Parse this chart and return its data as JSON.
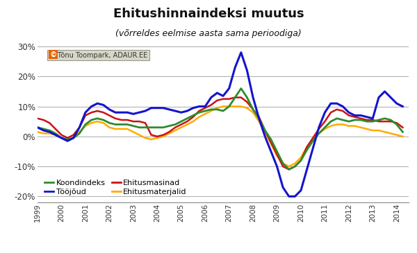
{
  "title": "Ehitushinnaindeksi muutus",
  "subtitle": "(võrreldes eelmise aasta sama perioodiga)",
  "watermark": "© Tõnu Toompark, ADAUR.EE",
  "ylim": [
    -22,
    32
  ],
  "colors": {
    "Koondindeks": "#2e8b2e",
    "Tooojoud": "#1414cc",
    "Ehitusmasinad": "#cc1111",
    "Ehitusmaterjalid": "#ffaa00"
  },
  "background": "#ffffff",
  "grid_color": "#aaaaaa",
  "quarters": [
    1999.0,
    1999.25,
    1999.5,
    1999.75,
    2000.0,
    2000.25,
    2000.5,
    2000.75,
    2001.0,
    2001.25,
    2001.5,
    2001.75,
    2002.0,
    2002.25,
    2002.5,
    2002.75,
    2003.0,
    2003.25,
    2003.5,
    2003.75,
    2004.0,
    2004.25,
    2004.5,
    2004.75,
    2005.0,
    2005.25,
    2005.5,
    2005.75,
    2006.0,
    2006.25,
    2006.5,
    2006.75,
    2007.0,
    2007.25,
    2007.5,
    2007.75,
    2008.0,
    2008.25,
    2008.5,
    2008.75,
    2009.0,
    2009.25,
    2009.5,
    2009.75,
    2010.0,
    2010.25,
    2010.5,
    2010.75,
    2011.0,
    2011.25,
    2011.5,
    2011.75,
    2012.0,
    2012.25,
    2012.5,
    2012.75,
    2013.0,
    2013.25,
    2013.5,
    2013.75,
    2014.0,
    2014.25
  ],
  "koondindeks": [
    3,
    2.5,
    2,
    1,
    -0.5,
    -1,
    -0.5,
    1,
    4,
    5.5,
    6,
    5.5,
    4.5,
    4,
    4,
    4,
    3.5,
    3,
    3,
    3,
    3,
    3,
    3.5,
    4,
    5,
    6,
    7,
    8,
    8.5,
    9,
    9,
    8.5,
    10,
    13,
    16,
    13,
    9,
    6,
    2,
    -1,
    -5,
    -9,
    -11,
    -10,
    -8,
    -4.5,
    -1.5,
    1,
    3,
    5,
    6,
    5.5,
    5,
    5.5,
    5.5,
    5,
    5,
    5.5,
    6,
    5.5,
    4,
    1.5
  ],
  "tooojoud": [
    3,
    2,
    1.5,
    0.5,
    -0.5,
    -1.5,
    -0.5,
    3,
    8,
    10,
    11,
    10.5,
    9,
    8,
    8,
    8,
    7.5,
    8,
    8.5,
    9.5,
    9.5,
    9.5,
    9,
    8.5,
    8,
    8.5,
    9.5,
    10,
    10,
    13,
    14.5,
    13.5,
    16,
    23,
    28,
    22,
    13,
    6,
    0,
    -5,
    -10,
    -17,
    -20,
    -20,
    -18,
    -11,
    -4,
    3,
    8,
    11,
    11,
    10,
    8,
    7,
    7,
    6.5,
    6,
    13,
    15,
    13,
    11,
    10
  ],
  "ehitusmasinad": [
    6,
    5.5,
    4.5,
    2.5,
    0.5,
    -0.5,
    0.5,
    3,
    7,
    8,
    8.5,
    8,
    7,
    6,
    5.5,
    5.5,
    5,
    5,
    4.5,
    0.5,
    0,
    0.5,
    1.5,
    3,
    4,
    5,
    6.5,
    8.5,
    9.5,
    10.5,
    12,
    12.5,
    12.5,
    13,
    13,
    11.5,
    9,
    6.5,
    2,
    -2,
    -6,
    -10,
    -11,
    -10,
    -8,
    -3.5,
    -0.5,
    2.5,
    5,
    8,
    9,
    8.5,
    7,
    6.5,
    6,
    5.5,
    5.5,
    5,
    5,
    5,
    4.5,
    3
  ],
  "ehitusmaterjalid": [
    1.5,
    1,
    1,
    0.5,
    -0.5,
    -1.5,
    -0.5,
    1.5,
    3.5,
    4.5,
    5,
    4.5,
    3,
    2.5,
    2.5,
    2.5,
    1.5,
    0.5,
    -0.5,
    -1,
    -0.5,
    0,
    1,
    2,
    3,
    4,
    5,
    6.5,
    7.5,
    8.5,
    9.5,
    10,
    10,
    10,
    10,
    9.5,
    8,
    5,
    1.5,
    -2.5,
    -6.5,
    -9,
    -10,
    -9,
    -7,
    -3.5,
    -1,
    1,
    2.5,
    3.5,
    4,
    4,
    3.5,
    3.5,
    3,
    2.5,
    2,
    2,
    1.5,
    1,
    0.5,
    0
  ]
}
